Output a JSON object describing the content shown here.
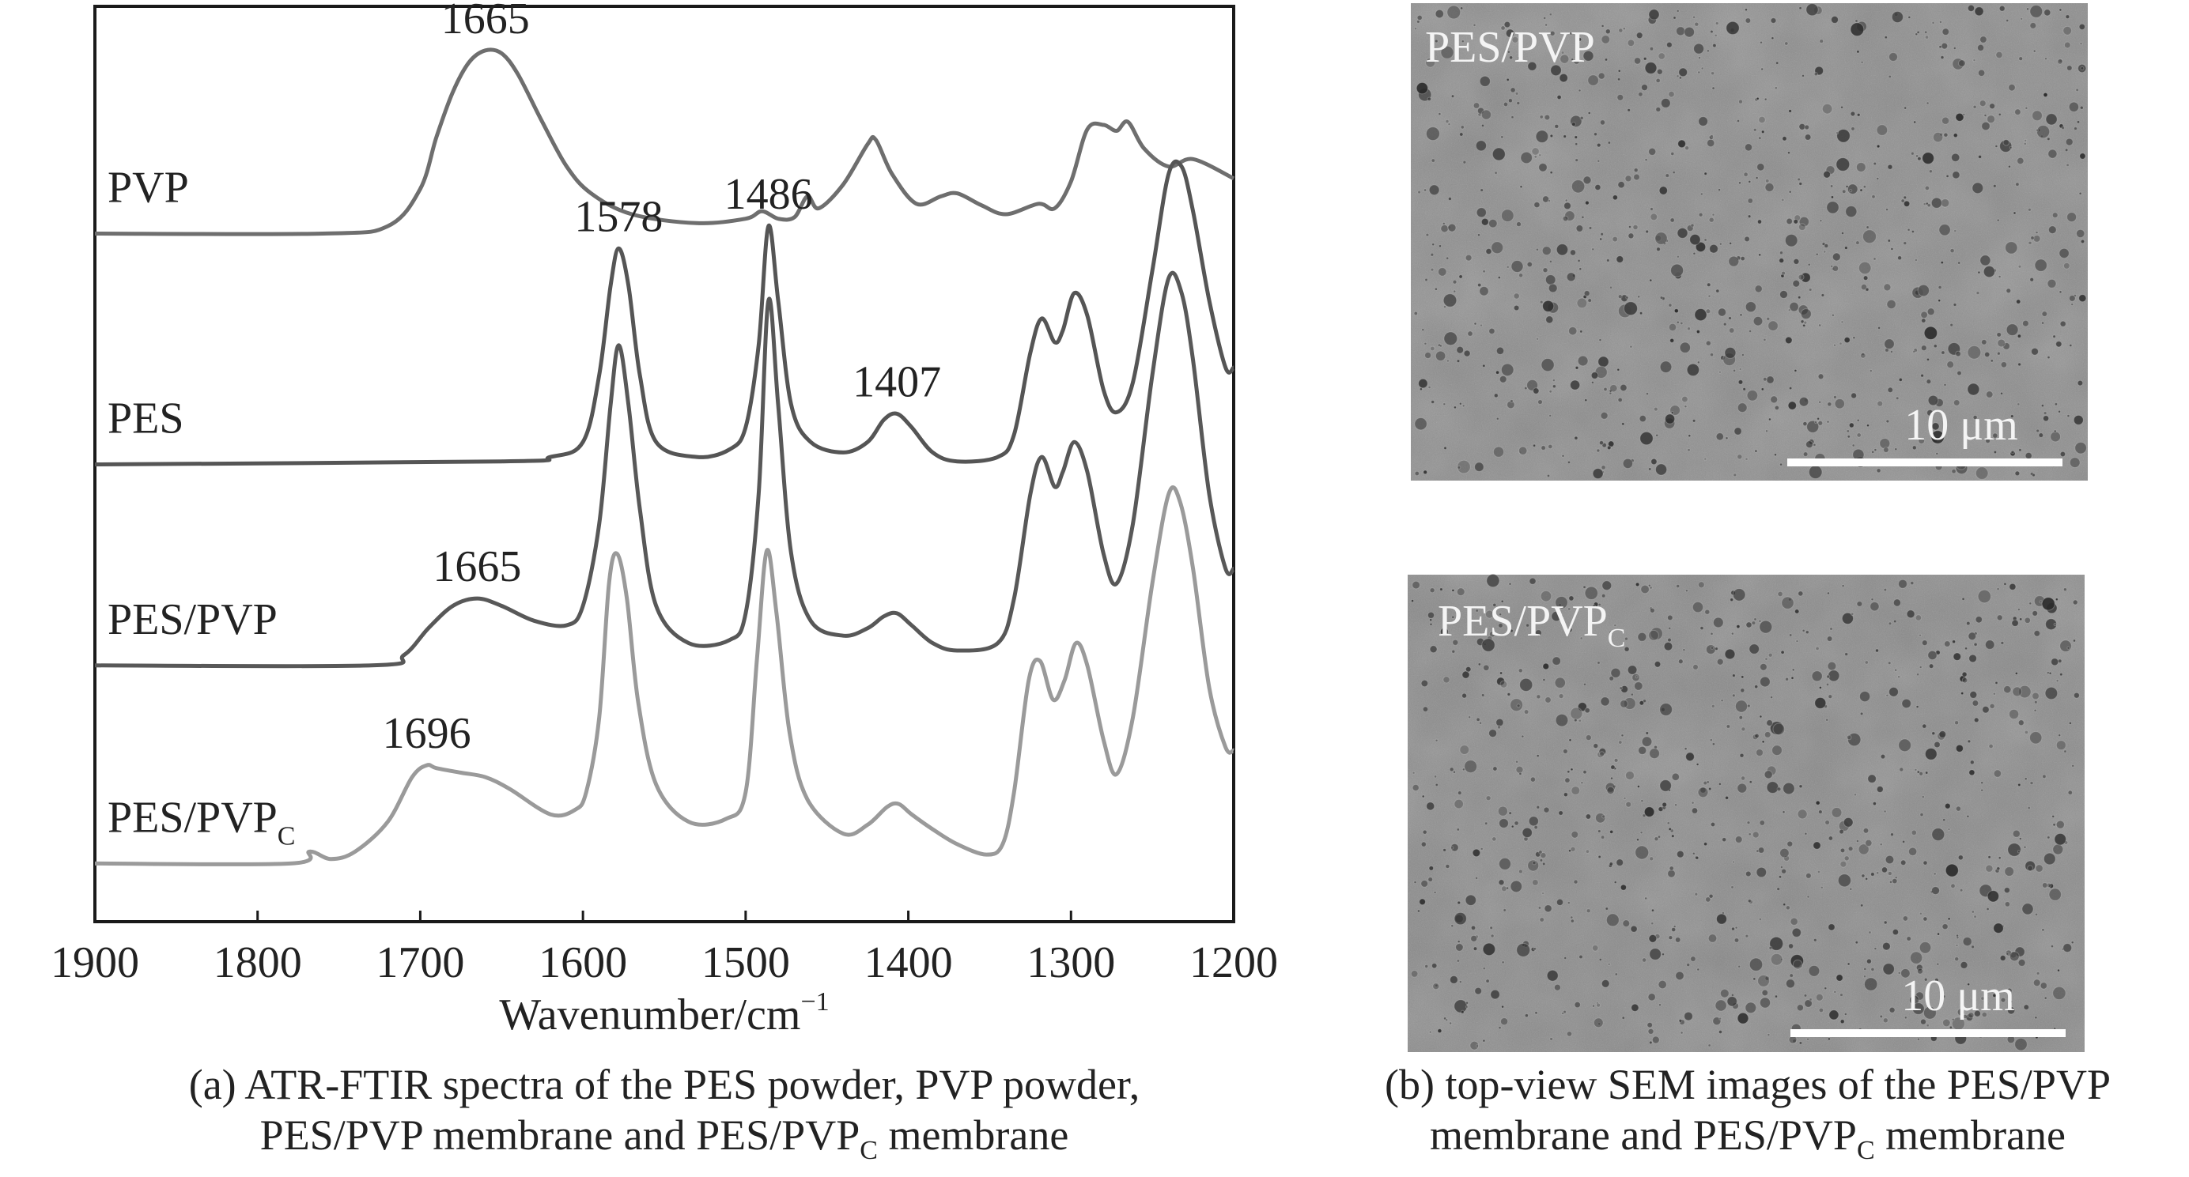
{
  "panel_a": {
    "caption_line1": "(a) ATR-FTIR spectra of the PES powder, PVP powder,",
    "caption_line2_main": "PES/PVP membrane and PES/PVP",
    "caption_line2_sub": "C",
    "caption_line2_tail": " membrane"
  },
  "panel_b": {
    "caption_line1": "(b) top-view SEM images of the PES/PVP",
    "caption_line2_main": "membrane and PES/PVP",
    "caption_line2_sub": "C",
    "caption_line2_tail": " membrane",
    "images": [
      {
        "label": "PES/PVP",
        "label_sub": "",
        "scale_bar": "10 μm"
      },
      {
        "label": "PES/PVP",
        "label_sub": "C",
        "scale_bar": "10 μm"
      }
    ]
  },
  "colors": {
    "frame": "#1a1a1a",
    "curve_pvp": "#6e6e6e",
    "curve_pes": "#555555",
    "curve_pes_pvp": "#585858",
    "curve_pes_pvpc": "#9a9a9a",
    "sem_background": "#8d8d8d",
    "scale_bar": "#ffffff"
  },
  "chart_data": {
    "type": "line",
    "title": "",
    "xlabel": "Wavenumber/cm",
    "xlabel_sup": "−1",
    "ylabel": "",
    "xlim": [
      1900,
      1200
    ],
    "x_reversed": true,
    "ylim": [
      0,
      5.6
    ],
    "yaxis_units": "absorbance (arbitrary, curves vertically offset)",
    "x_ticks": [
      "1900",
      "1800",
      "1700",
      "1600",
      "1500",
      "1400",
      "1300",
      "1200"
    ],
    "grid": false,
    "series": [
      {
        "name": "PVP",
        "name_sub": "",
        "color_key": "curve_pvp",
        "points": [
          [
            1900,
            4.35
          ],
          [
            1760,
            4.35
          ],
          [
            1720,
            4.4
          ],
          [
            1700,
            4.65
          ],
          [
            1690,
            5.0
          ],
          [
            1680,
            5.3
          ],
          [
            1670,
            5.5
          ],
          [
            1660,
            5.58
          ],
          [
            1650,
            5.56
          ],
          [
            1640,
            5.42
          ],
          [
            1625,
            5.1
          ],
          [
            1610,
            4.8
          ],
          [
            1595,
            4.62
          ],
          [
            1570,
            4.48
          ],
          [
            1530,
            4.42
          ],
          [
            1500,
            4.45
          ],
          [
            1490,
            4.5
          ],
          [
            1480,
            4.45
          ],
          [
            1470,
            4.46
          ],
          [
            1462,
            4.6
          ],
          [
            1455,
            4.52
          ],
          [
            1440,
            4.68
          ],
          [
            1425,
            4.95
          ],
          [
            1420,
            4.98
          ],
          [
            1410,
            4.75
          ],
          [
            1395,
            4.55
          ],
          [
            1380,
            4.6
          ],
          [
            1370,
            4.62
          ],
          [
            1355,
            4.54
          ],
          [
            1340,
            4.48
          ],
          [
            1320,
            4.55
          ],
          [
            1310,
            4.52
          ],
          [
            1300,
            4.7
          ],
          [
            1290,
            5.05
          ],
          [
            1280,
            5.08
          ],
          [
            1272,
            5.04
          ],
          [
            1265,
            5.1
          ],
          [
            1255,
            4.92
          ],
          [
            1240,
            4.8
          ],
          [
            1225,
            4.85
          ],
          [
            1200,
            4.72
          ]
        ]
      },
      {
        "name": "PES",
        "name_sub": "",
        "color_key": "curve_pes",
        "points": [
          [
            1900,
            2.8
          ],
          [
            1650,
            2.82
          ],
          [
            1620,
            2.85
          ],
          [
            1600,
            2.95
          ],
          [
            1590,
            3.4
          ],
          [
            1583,
            4.0
          ],
          [
            1578,
            4.25
          ],
          [
            1572,
            4.0
          ],
          [
            1565,
            3.4
          ],
          [
            1555,
            2.95
          ],
          [
            1530,
            2.85
          ],
          [
            1510,
            2.9
          ],
          [
            1500,
            3.05
          ],
          [
            1492,
            3.6
          ],
          [
            1486,
            4.4
          ],
          [
            1480,
            3.9
          ],
          [
            1472,
            3.2
          ],
          [
            1460,
            2.95
          ],
          [
            1440,
            2.88
          ],
          [
            1425,
            2.95
          ],
          [
            1415,
            3.1
          ],
          [
            1407,
            3.14
          ],
          [
            1398,
            3.05
          ],
          [
            1385,
            2.88
          ],
          [
            1370,
            2.82
          ],
          [
            1345,
            2.85
          ],
          [
            1335,
            3.0
          ],
          [
            1325,
            3.55
          ],
          [
            1318,
            3.78
          ],
          [
            1310,
            3.62
          ],
          [
            1305,
            3.7
          ],
          [
            1298,
            3.95
          ],
          [
            1290,
            3.8
          ],
          [
            1280,
            3.3
          ],
          [
            1272,
            3.15
          ],
          [
            1262,
            3.35
          ],
          [
            1250,
            4.1
          ],
          [
            1240,
            4.75
          ],
          [
            1232,
            4.8
          ],
          [
            1225,
            4.5
          ],
          [
            1215,
            3.9
          ],
          [
            1205,
            3.45
          ],
          [
            1200,
            3.45
          ]
        ]
      },
      {
        "name": "PES/PVP",
        "name_sub": "",
        "color_key": "curve_pes_pvp",
        "points": [
          [
            1900,
            1.45
          ],
          [
            1730,
            1.45
          ],
          [
            1710,
            1.52
          ],
          [
            1695,
            1.7
          ],
          [
            1680,
            1.85
          ],
          [
            1665,
            1.9
          ],
          [
            1650,
            1.85
          ],
          [
            1630,
            1.75
          ],
          [
            1610,
            1.72
          ],
          [
            1600,
            1.85
          ],
          [
            1590,
            2.4
          ],
          [
            1583,
            3.2
          ],
          [
            1578,
            3.6
          ],
          [
            1572,
            3.2
          ],
          [
            1565,
            2.5
          ],
          [
            1555,
            1.85
          ],
          [
            1535,
            1.6
          ],
          [
            1510,
            1.62
          ],
          [
            1500,
            1.8
          ],
          [
            1492,
            2.6
          ],
          [
            1486,
            3.9
          ],
          [
            1480,
            3.2
          ],
          [
            1472,
            2.2
          ],
          [
            1460,
            1.75
          ],
          [
            1440,
            1.65
          ],
          [
            1425,
            1.7
          ],
          [
            1415,
            1.78
          ],
          [
            1407,
            1.8
          ],
          [
            1398,
            1.72
          ],
          [
            1385,
            1.6
          ],
          [
            1370,
            1.55
          ],
          [
            1345,
            1.6
          ],
          [
            1335,
            1.9
          ],
          [
            1325,
            2.6
          ],
          [
            1318,
            2.85
          ],
          [
            1310,
            2.65
          ],
          [
            1305,
            2.75
          ],
          [
            1298,
            2.95
          ],
          [
            1290,
            2.75
          ],
          [
            1280,
            2.2
          ],
          [
            1272,
            2.0
          ],
          [
            1262,
            2.4
          ],
          [
            1250,
            3.4
          ],
          [
            1240,
            4.05
          ],
          [
            1232,
            3.95
          ],
          [
            1225,
            3.5
          ],
          [
            1215,
            2.6
          ],
          [
            1205,
            2.1
          ],
          [
            1200,
            2.1
          ]
        ]
      },
      {
        "name": "PES/PVP",
        "name_sub": "C",
        "color_key": "curve_pes_pvpc",
        "points": [
          [
            1900,
            0.12
          ],
          [
            1780,
            0.12
          ],
          [
            1768,
            0.2
          ],
          [
            1755,
            0.15
          ],
          [
            1740,
            0.2
          ],
          [
            1720,
            0.4
          ],
          [
            1705,
            0.7
          ],
          [
            1696,
            0.78
          ],
          [
            1690,
            0.76
          ],
          [
            1675,
            0.73
          ],
          [
            1660,
            0.7
          ],
          [
            1645,
            0.62
          ],
          [
            1620,
            0.45
          ],
          [
            1605,
            0.48
          ],
          [
            1598,
            0.6
          ],
          [
            1590,
            1.1
          ],
          [
            1584,
            2.0
          ],
          [
            1579,
            2.2
          ],
          [
            1573,
            1.9
          ],
          [
            1566,
            1.2
          ],
          [
            1555,
            0.65
          ],
          [
            1535,
            0.4
          ],
          [
            1512,
            0.42
          ],
          [
            1500,
            0.6
          ],
          [
            1493,
            1.5
          ],
          [
            1487,
            2.22
          ],
          [
            1481,
            1.8
          ],
          [
            1473,
            1.0
          ],
          [
            1462,
            0.55
          ],
          [
            1440,
            0.32
          ],
          [
            1425,
            0.38
          ],
          [
            1413,
            0.5
          ],
          [
            1406,
            0.52
          ],
          [
            1398,
            0.45
          ],
          [
            1385,
            0.35
          ],
          [
            1370,
            0.25
          ],
          [
            1352,
            0.18
          ],
          [
            1342,
            0.25
          ],
          [
            1335,
            0.6
          ],
          [
            1326,
            1.35
          ],
          [
            1319,
            1.48
          ],
          [
            1311,
            1.22
          ],
          [
            1304,
            1.35
          ],
          [
            1297,
            1.6
          ],
          [
            1290,
            1.45
          ],
          [
            1280,
            0.95
          ],
          [
            1272,
            0.72
          ],
          [
            1262,
            1.1
          ],
          [
            1250,
            2.0
          ],
          [
            1240,
            2.6
          ],
          [
            1233,
            2.55
          ],
          [
            1225,
            2.1
          ],
          [
            1215,
            1.3
          ],
          [
            1205,
            0.9
          ],
          [
            1200,
            0.88
          ]
        ]
      }
    ],
    "annotations": [
      {
        "text": "1665",
        "x": 1660,
        "y": 5.58
      },
      {
        "text": "1578",
        "x": 1578,
        "y": 4.25
      },
      {
        "text": "1486",
        "x": 1486,
        "y": 4.4
      },
      {
        "text": "1407",
        "x": 1407,
        "y": 3.14
      },
      {
        "text": "1665",
        "x": 1665,
        "y": 1.9
      },
      {
        "text": "1696",
        "x": 1696,
        "y": 0.78
      }
    ]
  }
}
